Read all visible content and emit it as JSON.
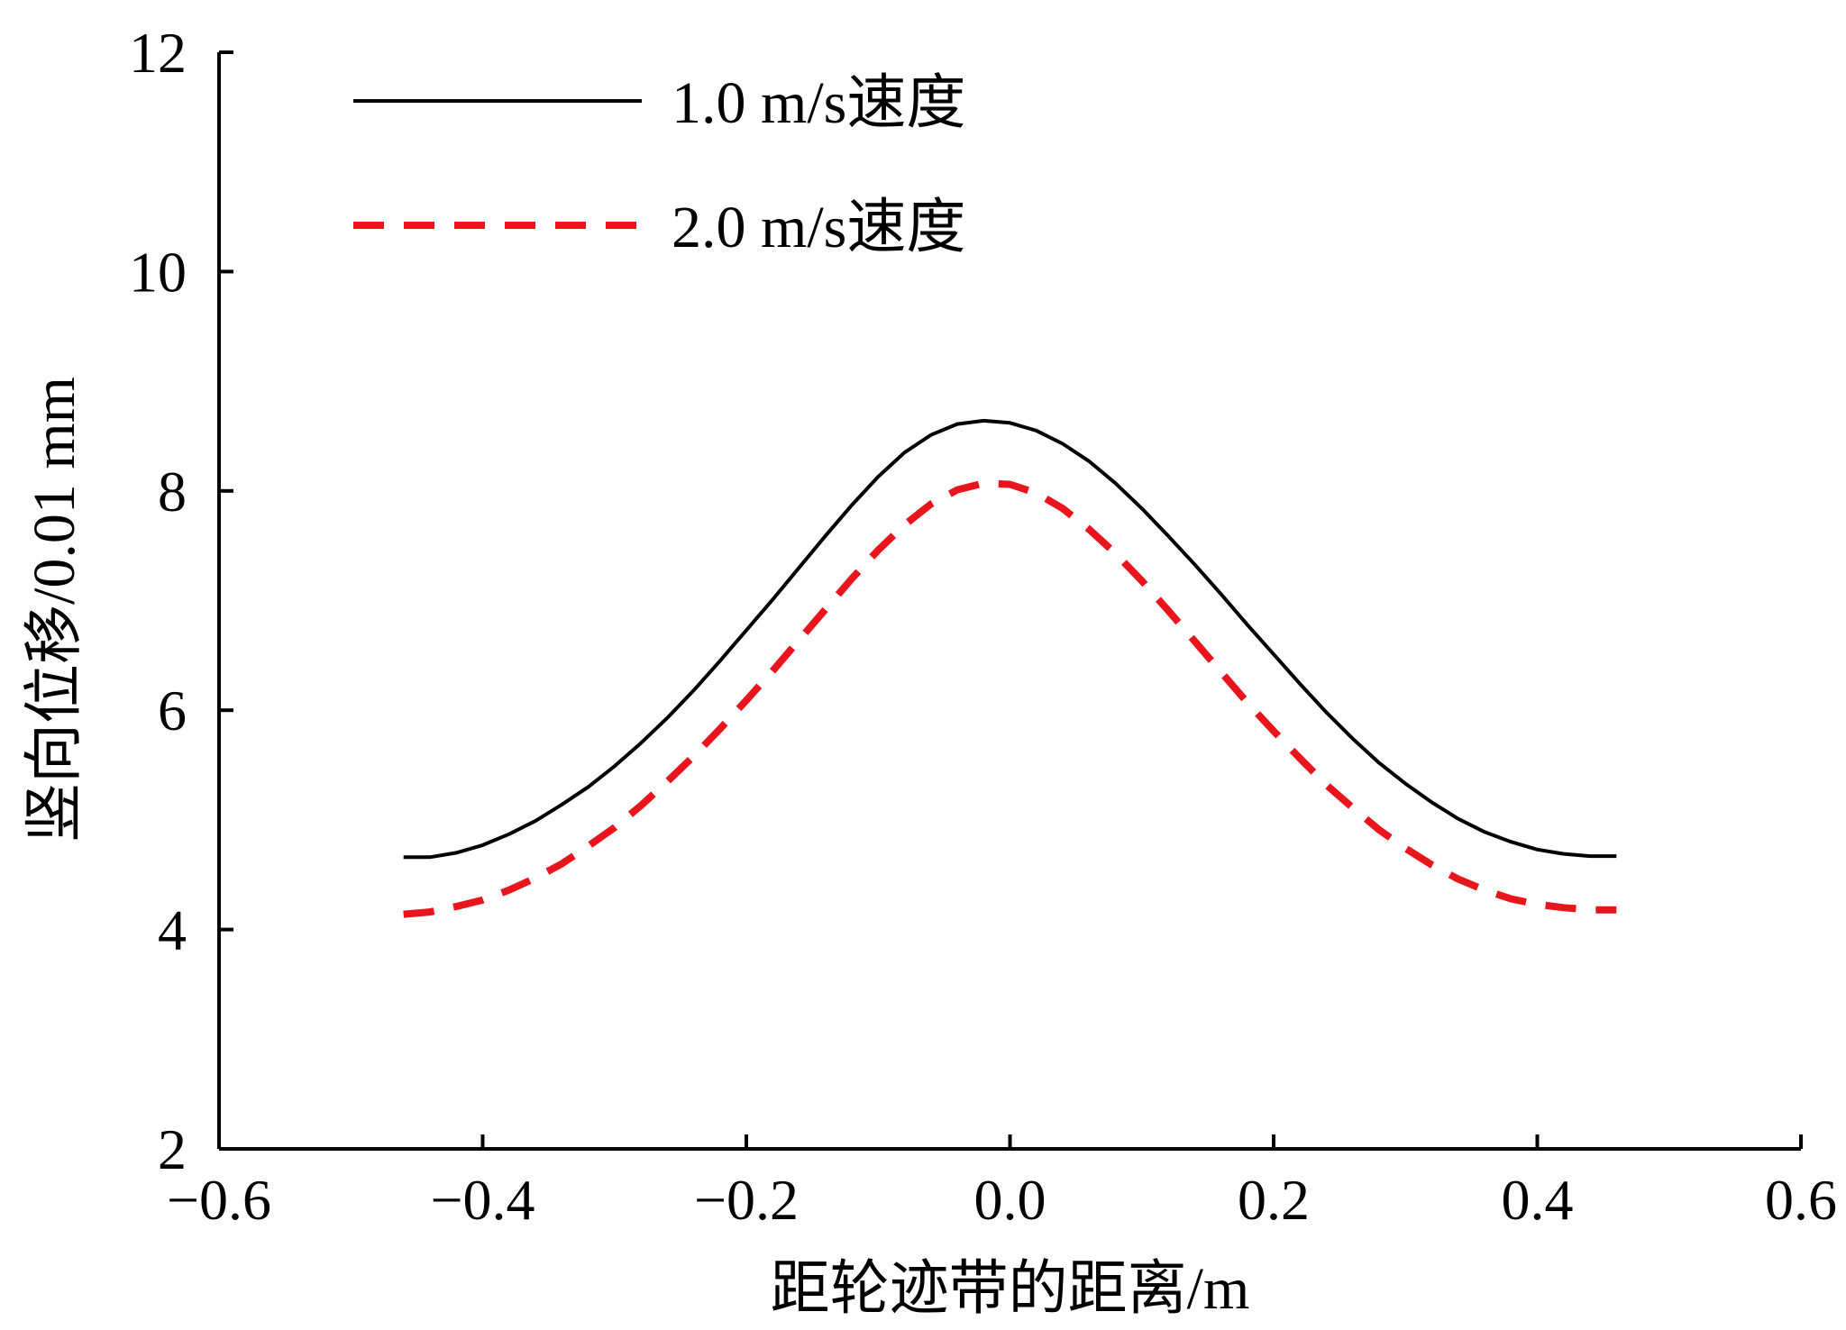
{
  "chart_data": {
    "type": "line",
    "title": "",
    "xlabel": "距轮迹带的距离/m",
    "ylabel": "竖向位移/0.01 mm",
    "xlim": [
      -0.6,
      0.6
    ],
    "ylim": [
      2,
      12
    ],
    "xticks": [
      -0.6,
      -0.4,
      -0.2,
      0.0,
      0.2,
      0.4,
      0.6
    ],
    "xtick_labels": [
      "−0.6",
      "−0.4",
      "−0.2",
      "0.0",
      "0.2",
      "0.4",
      "0.6"
    ],
    "yticks": [
      2,
      4,
      6,
      8,
      10,
      12
    ],
    "ytick_labels": [
      "2",
      "4",
      "6",
      "8",
      "10",
      "12"
    ],
    "grid": false,
    "legend_position": "top-left",
    "series": [
      {
        "name": "1.0 m/s速度",
        "color": "#000000",
        "style": "solid",
        "x": [
          -0.46,
          -0.44,
          -0.42,
          -0.4,
          -0.38,
          -0.36,
          -0.34,
          -0.32,
          -0.3,
          -0.28,
          -0.26,
          -0.24,
          -0.22,
          -0.2,
          -0.18,
          -0.16,
          -0.14,
          -0.12,
          -0.1,
          -0.08,
          -0.06,
          -0.04,
          -0.02,
          0.0,
          0.02,
          0.04,
          0.06,
          0.08,
          0.1,
          0.12,
          0.14,
          0.16,
          0.18,
          0.2,
          0.22,
          0.24,
          0.26,
          0.28,
          0.3,
          0.32,
          0.34,
          0.36,
          0.38,
          0.4,
          0.42,
          0.44,
          0.46
        ],
        "y": [
          4.66,
          4.66,
          4.7,
          4.77,
          4.87,
          4.99,
          5.14,
          5.3,
          5.49,
          5.7,
          5.93,
          6.18,
          6.45,
          6.73,
          7.01,
          7.3,
          7.59,
          7.87,
          8.13,
          8.35,
          8.51,
          8.61,
          8.64,
          8.62,
          8.55,
          8.43,
          8.27,
          8.07,
          7.84,
          7.59,
          7.33,
          7.06,
          6.78,
          6.51,
          6.24,
          5.98,
          5.74,
          5.52,
          5.33,
          5.16,
          5.01,
          4.89,
          4.8,
          4.73,
          4.69,
          4.67,
          4.67
        ]
      },
      {
        "name": "2.0 m/s速度",
        "color": "#e8151d",
        "style": "dashed",
        "x": [
          -0.46,
          -0.44,
          -0.42,
          -0.4,
          -0.38,
          -0.36,
          -0.34,
          -0.32,
          -0.3,
          -0.28,
          -0.26,
          -0.24,
          -0.22,
          -0.2,
          -0.18,
          -0.16,
          -0.14,
          -0.12,
          -0.1,
          -0.08,
          -0.06,
          -0.04,
          -0.02,
          0.0,
          0.02,
          0.04,
          0.06,
          0.08,
          0.1,
          0.12,
          0.14,
          0.16,
          0.18,
          0.2,
          0.22,
          0.24,
          0.26,
          0.28,
          0.3,
          0.32,
          0.34,
          0.36,
          0.38,
          0.4,
          0.42,
          0.44,
          0.46
        ],
        "y": [
          4.14,
          4.16,
          4.21,
          4.27,
          4.36,
          4.47,
          4.6,
          4.76,
          4.93,
          5.13,
          5.35,
          5.58,
          5.83,
          6.09,
          6.36,
          6.64,
          6.92,
          7.2,
          7.46,
          7.69,
          7.88,
          8.01,
          8.07,
          8.06,
          7.98,
          7.84,
          7.65,
          7.43,
          7.18,
          6.91,
          6.63,
          6.35,
          6.07,
          5.81,
          5.56,
          5.32,
          5.11,
          4.91,
          4.74,
          4.59,
          4.46,
          4.36,
          4.28,
          4.23,
          4.2,
          4.18,
          4.18
        ]
      }
    ]
  }
}
